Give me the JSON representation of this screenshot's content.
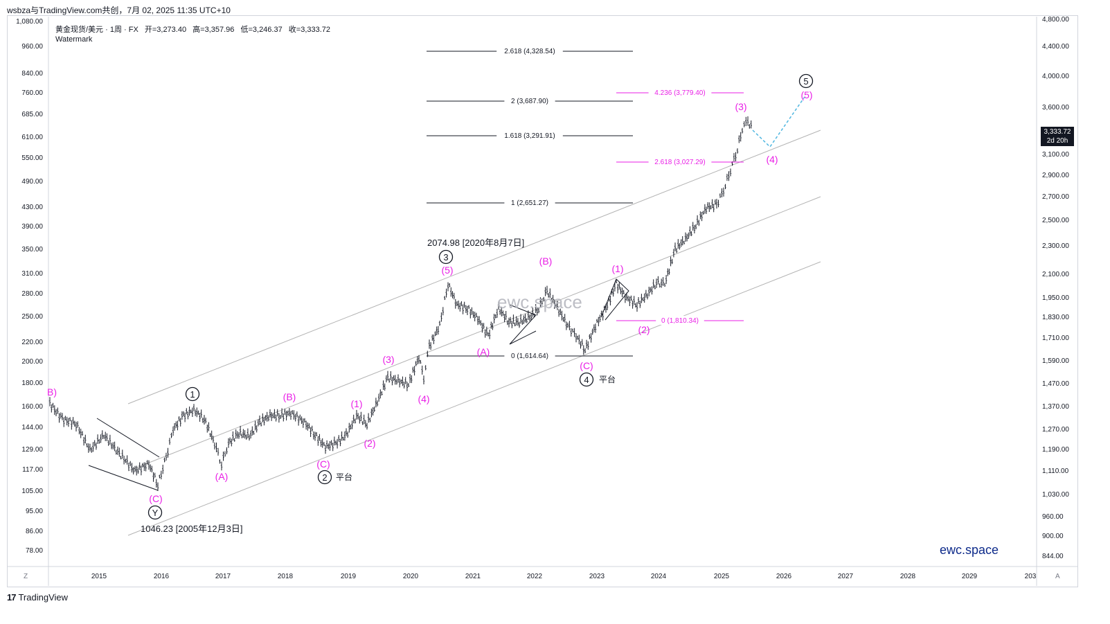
{
  "header": {
    "caption": "wsbza与TradingView.com共创，7月 02, 2025 11:35 UTC+10"
  },
  "symbol": {
    "name": "黄金现货/美元 · 1周 · FX",
    "open": "开=3,273.40",
    "high": "高=3,357.96",
    "low": "低=3,246.37",
    "close": "收=3,333.72",
    "watermark_label": "Watermark"
  },
  "price_label": {
    "value": "3,333.72",
    "countdown": "2d 20h"
  },
  "left_axis": [
    "1,080.00",
    "960.00",
    "840.00",
    "760.00",
    "685.00",
    "610.00",
    "550.00",
    "490.00",
    "430.00",
    "390.00",
    "350.00",
    "310.00",
    "280.00",
    "250.00",
    "220.00",
    "200.00",
    "180.00",
    "160.00",
    "144.00",
    "129.00",
    "117.00",
    "105.00",
    "95.00",
    "86.00",
    "78.00"
  ],
  "right_axis": [
    "4,800.00",
    "4,400.00",
    "4,000.00",
    "3,600.00",
    "3,100.00",
    "2,900.00",
    "2,700.00",
    "2,500.00",
    "2,300.00",
    "2,100.00",
    "1,950.00",
    "1,830.00",
    "1,710.00",
    "1,590.00",
    "1,470.00",
    "1,370.00",
    "1,270.00",
    "1,190.00",
    "1,110.00",
    "1,030.00",
    "960.00",
    "900.00",
    "844.00"
  ],
  "x_axis": [
    "2015",
    "2016",
    "2017",
    "2018",
    "2019",
    "2020",
    "2021",
    "2022",
    "2023",
    "2024",
    "2025",
    "2026",
    "2027",
    "2028",
    "2029",
    "203"
  ],
  "fib_black": [
    "2.618 (4,328.54)",
    "2 (3,687.90)",
    "1.618 (3,291.91)",
    "1 (2,651.27)",
    "0 (1,614.64)"
  ],
  "fib_magenta": [
    "4.236 (3,779.40)",
    "2.618 (3,027.29)",
    "0 (1,810.34)"
  ],
  "annotations": {
    "high_note": "2074.98 [2020年8月7日]",
    "low_note": "1046.23 [2005年12月3日]",
    "flat_label": "平台",
    "wave_labels": [
      "(3)",
      "(B)",
      "(A)",
      "(C)",
      "(1)",
      "(2)",
      "(4)",
      "(5)"
    ],
    "circle_labels": [
      "1",
      "2",
      "3",
      "4",
      "5",
      "Y"
    ],
    "partial_b": "B)"
  },
  "brand": {
    "ewc": "ewc.space",
    "center": "ewc.space",
    "footer": "TradingView",
    "footer_mark": "17"
  },
  "buttons": {
    "timezone": "Z",
    "auto": "A"
  },
  "colors": {
    "magenta": "#e91ee6",
    "cyan": "#4fb6e0",
    "channel": "#b3b3b3",
    "brand_blue": "#0d2a8a"
  }
}
